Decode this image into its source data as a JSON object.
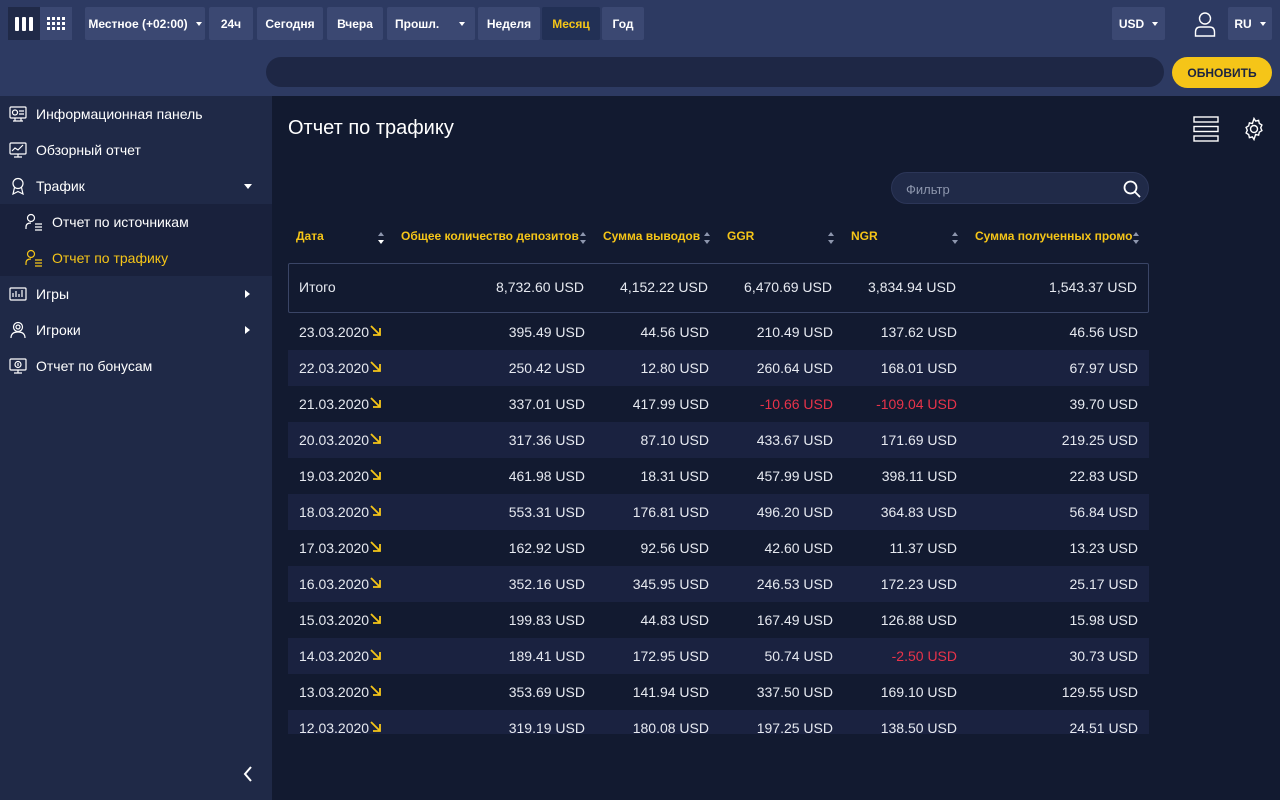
{
  "toolbar": {
    "timezone_label": "Местное (+02:00)",
    "range_24h": "24ч",
    "today": "Сегодня",
    "yesterday": "Вчера",
    "prev_label": "Прошл.",
    "week": "Неделя",
    "month": "Месяц",
    "year": "Год",
    "active_range": "Месяц",
    "currency": "USD",
    "language": "RU",
    "refresh": "ОБНОВИТЬ"
  },
  "sidebar": {
    "items": [
      {
        "label": "Информационная панель",
        "icon": "dashboard-icon"
      },
      {
        "label": "Обзорный отчет",
        "icon": "monitor-chart-icon"
      },
      {
        "label": "Трафик",
        "icon": "award-icon"
      },
      {
        "label": "Отчет по источникам",
        "icon": "user-list-icon"
      },
      {
        "label": "Отчет по трафику",
        "icon": "user-list-icon"
      },
      {
        "label": "Игры",
        "icon": "bar-chart-icon"
      },
      {
        "label": "Игроки",
        "icon": "user-circle-icon"
      },
      {
        "label": "Отчет по бонусам",
        "icon": "bonus-icon"
      }
    ]
  },
  "main": {
    "title": "Отчет по трафику",
    "filter_placeholder": "Фильтр",
    "columns": [
      "Дата",
      "Общее количество депозитов",
      "Сумма выводов",
      "GGR",
      "NGR",
      "Сумма полученных промо"
    ],
    "total": {
      "label": "Итого",
      "values": [
        "8,732.60 USD",
        "4,152.22 USD",
        "6,470.69 USD",
        "3,834.94 USD",
        "1,543.37 USD"
      ]
    },
    "rows": [
      {
        "date": "23.03.2020",
        "values": [
          "395.49 USD",
          "44.56 USD",
          "210.49 USD",
          "137.62 USD",
          "46.56 USD"
        ]
      },
      {
        "date": "22.03.2020",
        "values": [
          "250.42 USD",
          "12.80 USD",
          "260.64 USD",
          "168.01 USD",
          "67.97 USD"
        ]
      },
      {
        "date": "21.03.2020",
        "values": [
          "337.01 USD",
          "417.99 USD",
          "-10.66 USD",
          "-109.04 USD",
          "39.70 USD"
        ]
      },
      {
        "date": "20.03.2020",
        "values": [
          "317.36 USD",
          "87.10 USD",
          "433.67 USD",
          "171.69 USD",
          "219.25 USD"
        ]
      },
      {
        "date": "19.03.2020",
        "values": [
          "461.98 USD",
          "18.31 USD",
          "457.99 USD",
          "398.11 USD",
          "22.83 USD"
        ]
      },
      {
        "date": "18.03.2020",
        "values": [
          "553.31 USD",
          "176.81 USD",
          "496.20 USD",
          "364.83 USD",
          "56.84 USD"
        ]
      },
      {
        "date": "17.03.2020",
        "values": [
          "162.92 USD",
          "92.56 USD",
          "42.60 USD",
          "11.37 USD",
          "13.23 USD"
        ]
      },
      {
        "date": "16.03.2020",
        "values": [
          "352.16 USD",
          "345.95 USD",
          "246.53 USD",
          "172.23 USD",
          "25.17 USD"
        ]
      },
      {
        "date": "15.03.2020",
        "values": [
          "199.83 USD",
          "44.83 USD",
          "167.49 USD",
          "126.88 USD",
          "15.98 USD"
        ]
      },
      {
        "date": "14.03.2020",
        "values": [
          "189.41 USD",
          "172.95 USD",
          "50.74 USD",
          "-2.50 USD",
          "30.73 USD"
        ]
      },
      {
        "date": "13.03.2020",
        "values": [
          "353.69 USD",
          "141.94 USD",
          "337.50 USD",
          "169.10 USD",
          "129.55 USD"
        ]
      },
      {
        "date": "12.03.2020",
        "values": [
          "319.19 USD",
          "180.08 USD",
          "197.25 USD",
          "138.50 USD",
          "24.51 USD"
        ]
      }
    ]
  },
  "colors": {
    "accent": "#f5c518",
    "negative": "#e8334a",
    "topbar": "#2d3a62",
    "sidebar": "#1f2947",
    "background": "#121a30"
  }
}
